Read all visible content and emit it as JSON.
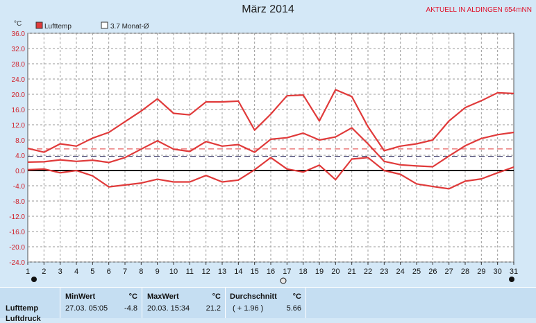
{
  "header": {
    "title": "März 2014",
    "station": "AKTUELL IN ALDINGEN 654mNN"
  },
  "chart_data": {
    "type": "line",
    "y_unit": "°C",
    "ylim": [
      -24,
      36
    ],
    "y_ticks": [
      36.0,
      32.0,
      28.0,
      24.0,
      20.0,
      16.0,
      12.0,
      8.0,
      4.0,
      0.0,
      -4.0,
      -8.0,
      -12.0,
      -16.0,
      -20.0,
      -24.0
    ],
    "x_ticks": [
      1,
      2,
      3,
      4,
      5,
      6,
      7,
      8,
      9,
      10,
      11,
      12,
      13,
      14,
      15,
      16,
      17,
      18,
      19,
      20,
      21,
      22,
      23,
      24,
      25,
      26,
      27,
      28,
      29,
      30,
      31
    ],
    "grid": true,
    "legend": [
      {
        "label": "Lufttemp",
        "color": "#e03a3a",
        "marker": "filled"
      },
      {
        "label": "3.7 Monat-Ø",
        "color": "#333366",
        "marker": "empty"
      }
    ],
    "series": [
      {
        "name": "Max",
        "values": [
          5.8,
          4.8,
          7.0,
          6.4,
          8.5,
          10.0,
          12.8,
          15.6,
          18.8,
          15.0,
          14.6,
          18.0,
          18.0,
          18.2,
          10.6,
          14.8,
          19.6,
          19.8,
          13.0,
          21.2,
          19.4,
          11.5,
          5.2,
          6.4,
          7.0,
          8.0,
          13.0,
          16.5,
          18.3,
          20.4,
          20.2
        ]
      },
      {
        "name": "Mittel",
        "values": [
          2.2,
          2.3,
          2.8,
          2.4,
          2.7,
          2.1,
          3.4,
          5.6,
          7.8,
          5.6,
          5.0,
          7.6,
          6.4,
          6.8,
          4.8,
          8.2,
          8.6,
          9.8,
          8.0,
          8.8,
          11.2,
          7.0,
          2.4,
          1.5,
          1.2,
          1.0,
          3.8,
          6.5,
          8.4,
          9.4,
          10.0
        ]
      },
      {
        "name": "Min",
        "values": [
          0.2,
          0.4,
          -0.6,
          0.0,
          -1.4,
          -4.3,
          -3.8,
          -3.3,
          -2.3,
          -3.0,
          -3.0,
          -1.3,
          -3.0,
          -2.5,
          0.2,
          3.4,
          0.4,
          -0.4,
          1.4,
          -2.4,
          3.0,
          3.4,
          0.0,
          -1.0,
          -3.5,
          -4.2,
          -4.8,
          -2.8,
          -2.2,
          -0.6,
          0.9
        ]
      }
    ],
    "reference_lines": [
      {
        "value": 5.66,
        "color": "#e03a3a",
        "style": "dashed"
      },
      {
        "value": 3.7,
        "color": "#333366",
        "style": "dashed"
      }
    ]
  },
  "stats": {
    "col_min_header": "MinWert",
    "col_max_header": "MaxWert",
    "col_avg_header": "Durchschnitt",
    "unit": "°C",
    "row_label": "Lufttemp",
    "row_label_next": "Luftdruck",
    "min_time": "27.03.  05:05",
    "min_value": "-4.8",
    "max_time": "20.03.  15:34",
    "max_value": "21.2",
    "avg_delta": "( + 1.96 )",
    "avg_value": "5.66"
  }
}
